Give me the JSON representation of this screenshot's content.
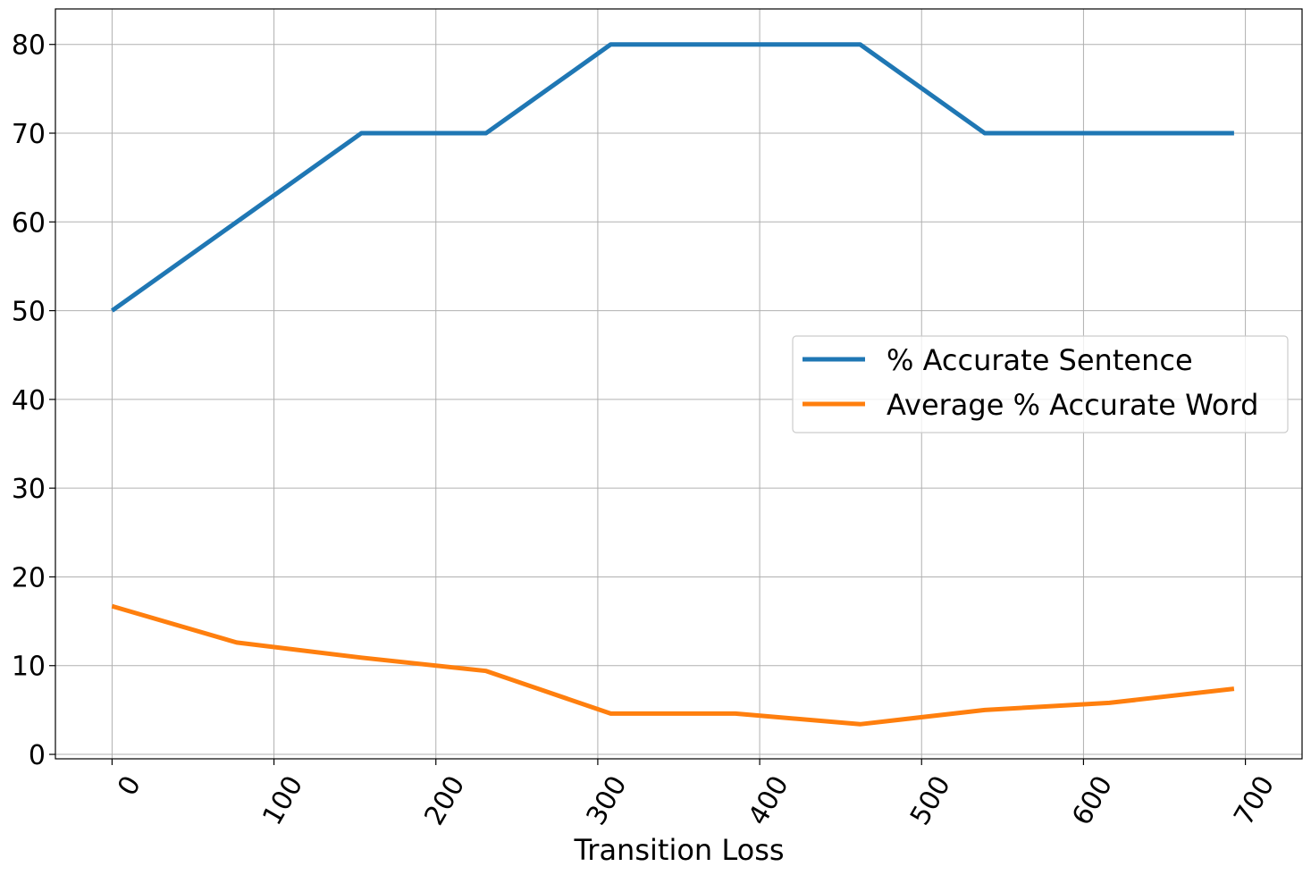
{
  "chart_data": {
    "type": "line",
    "title": "",
    "xlabel": "Transition Loss",
    "ylabel": "",
    "xlim": [
      -35,
      735
    ],
    "ylim": [
      -0.5,
      84
    ],
    "xticks": [
      0,
      100,
      200,
      300,
      400,
      500,
      600,
      700
    ],
    "yticks": [
      0,
      10,
      20,
      30,
      40,
      50,
      60,
      70,
      80
    ],
    "xtick_rotation": 60,
    "grid": true,
    "legend_position": "center-right",
    "x": [
      0,
      77,
      154,
      231,
      308,
      385,
      462,
      539,
      616,
      693
    ],
    "series": [
      {
        "name": "% Accurate Sentence",
        "color": "#1f77b4",
        "values": [
          50,
          60,
          70,
          70,
          80,
          80,
          80,
          70,
          70,
          70
        ]
      },
      {
        "name": "Average % Accurate Word",
        "color": "#ff7f0e",
        "values": [
          16.7,
          12.6,
          10.9,
          9.4,
          4.6,
          4.6,
          3.4,
          5.0,
          5.8,
          7.4
        ]
      }
    ]
  }
}
